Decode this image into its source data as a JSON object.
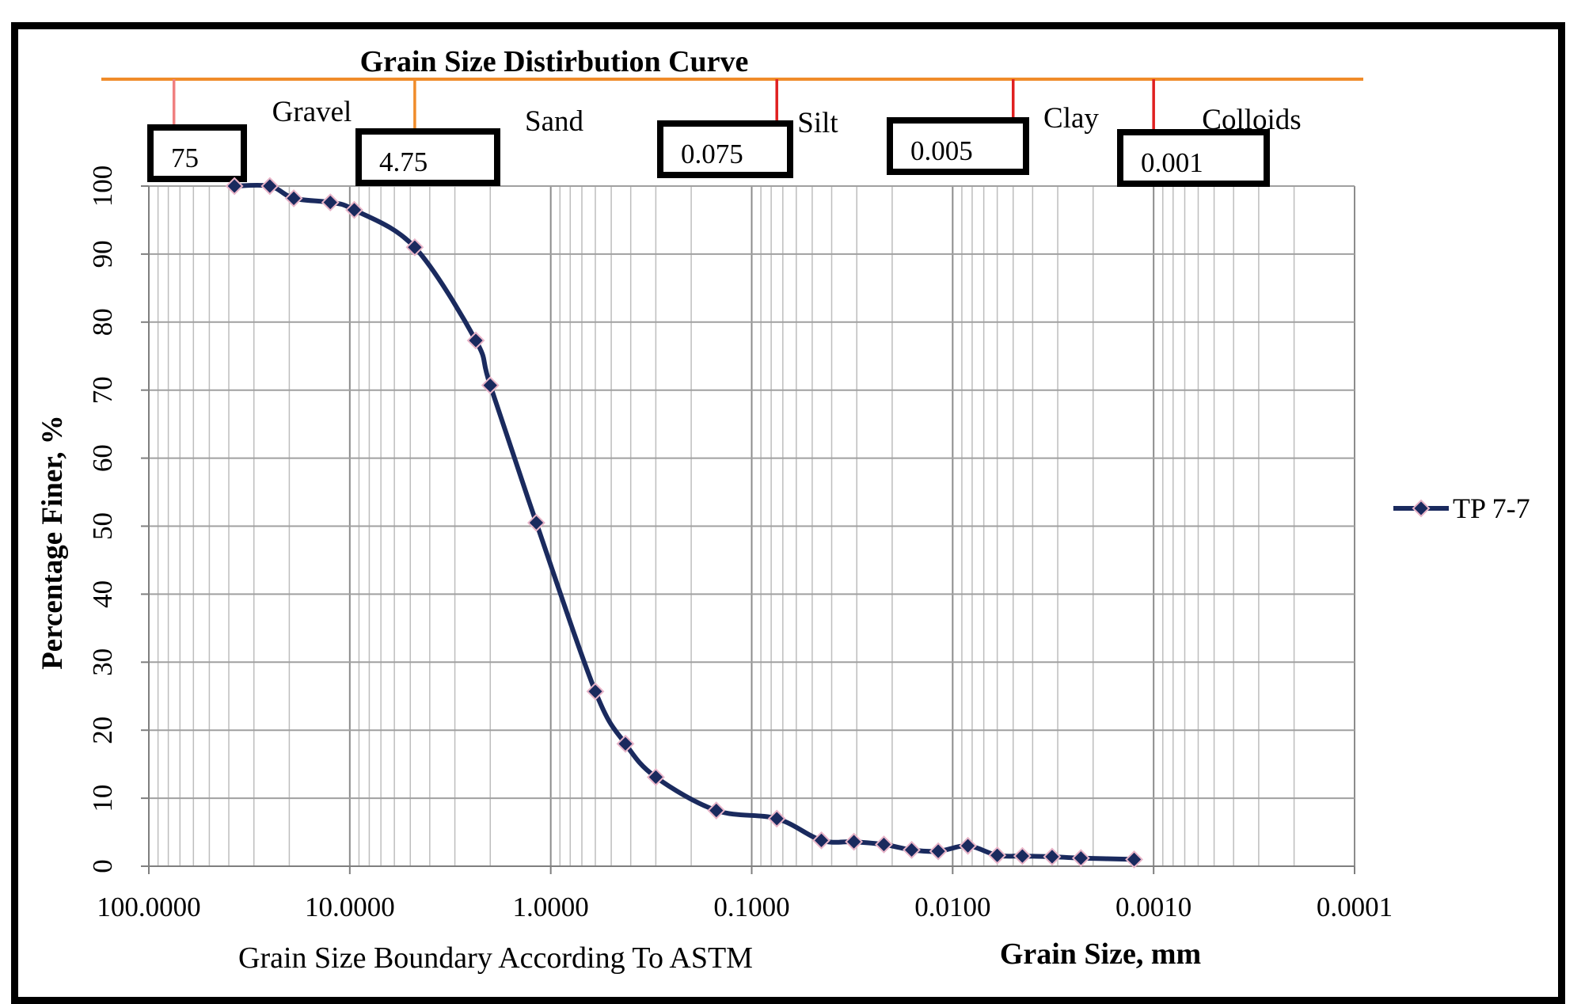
{
  "chart_data": {
    "type": "line",
    "title": "Grain Size  Distirbution Curve",
    "xlabel": "Grain Size, mm",
    "x_boundary_label": "Grain Size Boundary According To ASTM",
    "ylabel": "Percentage Finer, %",
    "x_scale": "log",
    "x_reversed": true,
    "xlim": [
      100,
      0.0001
    ],
    "ylim": [
      0,
      100
    ],
    "x_tick_labels": [
      "100.0000",
      "10.0000",
      "1.0000",
      "0.1000",
      "0.0100",
      "0.0010",
      "0.0001"
    ],
    "y_tick_labels": [
      "0",
      "10",
      "20",
      "30",
      "40",
      "50",
      "60",
      "70",
      "80",
      "90",
      "100"
    ],
    "grid": true,
    "legend_position": "right",
    "series": [
      {
        "name": "TP 7-7",
        "color": "#1a2a5e",
        "marker_color": "#1a2a5e",
        "marker_edge": "#e8b4c8",
        "points": [
          {
            "x": 37.5,
            "y": 100
          },
          {
            "x": 25,
            "y": 100
          },
          {
            "x": 19,
            "y": 98.2
          },
          {
            "x": 12.5,
            "y": 97.6
          },
          {
            "x": 9.5,
            "y": 96.5
          },
          {
            "x": 4.75,
            "y": 91
          },
          {
            "x": 2.36,
            "y": 77.3
          },
          {
            "x": 2.0,
            "y": 70.7
          },
          {
            "x": 1.18,
            "y": 50.5
          },
          {
            "x": 0.6,
            "y": 25.7
          },
          {
            "x": 0.425,
            "y": 18
          },
          {
            "x": 0.3,
            "y": 13.1
          },
          {
            "x": 0.15,
            "y": 8.2
          },
          {
            "x": 0.075,
            "y": 7
          },
          {
            "x": 0.045,
            "y": 3.8
          },
          {
            "x": 0.031,
            "y": 3.6
          },
          {
            "x": 0.022,
            "y": 3.2
          },
          {
            "x": 0.016,
            "y": 2.4
          },
          {
            "x": 0.0118,
            "y": 2.2
          },
          {
            "x": 0.0084,
            "y": 3
          },
          {
            "x": 0.006,
            "y": 1.6
          },
          {
            "x": 0.0045,
            "y": 1.5
          },
          {
            "x": 0.0032,
            "y": 1.4
          },
          {
            "x": 0.0023,
            "y": 1.2
          },
          {
            "x": 0.00125,
            "y": 1
          }
        ]
      }
    ],
    "boundaries": [
      {
        "value": 75,
        "label": "75",
        "color": "#f08080"
      },
      {
        "value": 4.75,
        "label": "4.75",
        "color": "#f08c2a"
      },
      {
        "value": 0.075,
        "label": "0.075",
        "color": "#e02020"
      },
      {
        "value": 0.005,
        "label": "0.005",
        "color": "#e02020"
      },
      {
        "value": 0.001,
        "label": "0.001",
        "color": "#e02020"
      }
    ],
    "classes": [
      {
        "label": "Gravel"
      },
      {
        "label": "Sand"
      },
      {
        "label": "Silt"
      },
      {
        "label": "Clay"
      },
      {
        "label": "Colloids"
      }
    ],
    "header_line_color": "#f08c2a"
  }
}
